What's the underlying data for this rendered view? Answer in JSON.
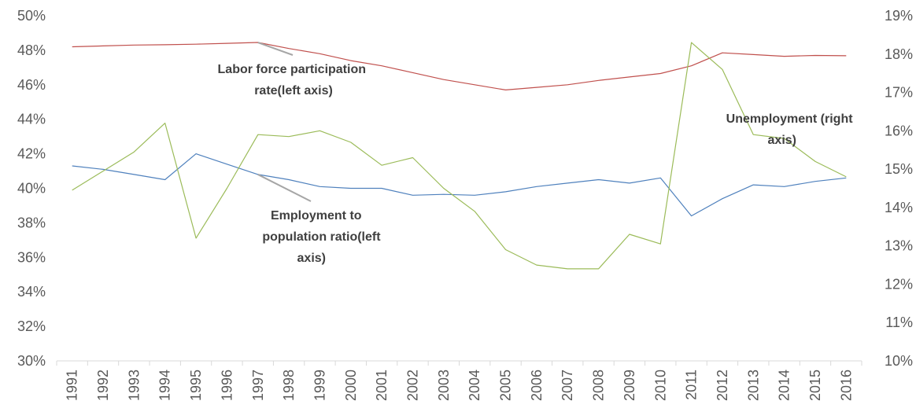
{
  "chart_data": {
    "type": "line",
    "title": "",
    "xlabel": "",
    "ylabel": "",
    "categories": [
      "1991",
      "1992",
      "1993",
      "1994",
      "1995",
      "1996",
      "1997",
      "1998",
      "1999",
      "2000",
      "2001",
      "2002",
      "2003",
      "2004",
      "2005",
      "2006",
      "2007",
      "2008",
      "2009",
      "2010",
      "2011",
      "2012",
      "2013",
      "2014",
      "2015",
      "2016"
    ],
    "y_left": {
      "ylim": [
        30,
        50
      ],
      "ticks": [
        "30%",
        "32%",
        "34%",
        "36%",
        "38%",
        "40%",
        "42%",
        "44%",
        "46%",
        "48%",
        "50%"
      ]
    },
    "y_right": {
      "ylim": [
        10,
        19
      ],
      "ticks": [
        "10%",
        "11%",
        "12%",
        "13%",
        "14%",
        "15%",
        "16%",
        "17%",
        "18%",
        "19%"
      ]
    },
    "grid": false,
    "legend": "none",
    "series": [
      {
        "axis": "left",
        "color": "#C0504D",
        "values": [
          48.2,
          48.25,
          48.3,
          48.32,
          48.35,
          48.4,
          48.45,
          48.1,
          47.8,
          47.4,
          47.1,
          46.7,
          46.3,
          46.0,
          45.7,
          45.85,
          46.0,
          46.25,
          46.45,
          46.65,
          47.1,
          47.85,
          47.75,
          47.65,
          47.7,
          47.68
        ]
      },
      {
        "axis": "left",
        "color": "#4F81BD",
        "values": [
          41.3,
          41.1,
          40.8,
          40.5,
          42.0,
          41.4,
          40.8,
          40.5,
          40.1,
          40.0,
          40.0,
          39.6,
          39.65,
          39.6,
          39.8,
          40.1,
          40.3,
          40.5,
          40.3,
          40.6,
          38.4,
          39.4,
          40.2,
          40.1,
          40.4,
          40.6
        ]
      },
      {
        "axis": "right",
        "color": "#9BBB59",
        "values": [
          14.45,
          14.95,
          15.45,
          16.2,
          13.2,
          14.5,
          15.9,
          15.85,
          16.0,
          15.7,
          15.1,
          15.3,
          14.5,
          13.9,
          12.9,
          12.5,
          12.4,
          12.4,
          13.3,
          13.05,
          18.3,
          17.6,
          15.9,
          15.8,
          15.2,
          14.8
        ]
      }
    ],
    "annotations": [
      {
        "lines": [
          "Labor force participation",
          "rate(left axis)"
        ]
      },
      {
        "lines": [
          "Employment to",
          "population ratio(left",
          "axis)"
        ]
      },
      {
        "lines": [
          "Unemployment (right",
          "axis)"
        ]
      }
    ]
  }
}
